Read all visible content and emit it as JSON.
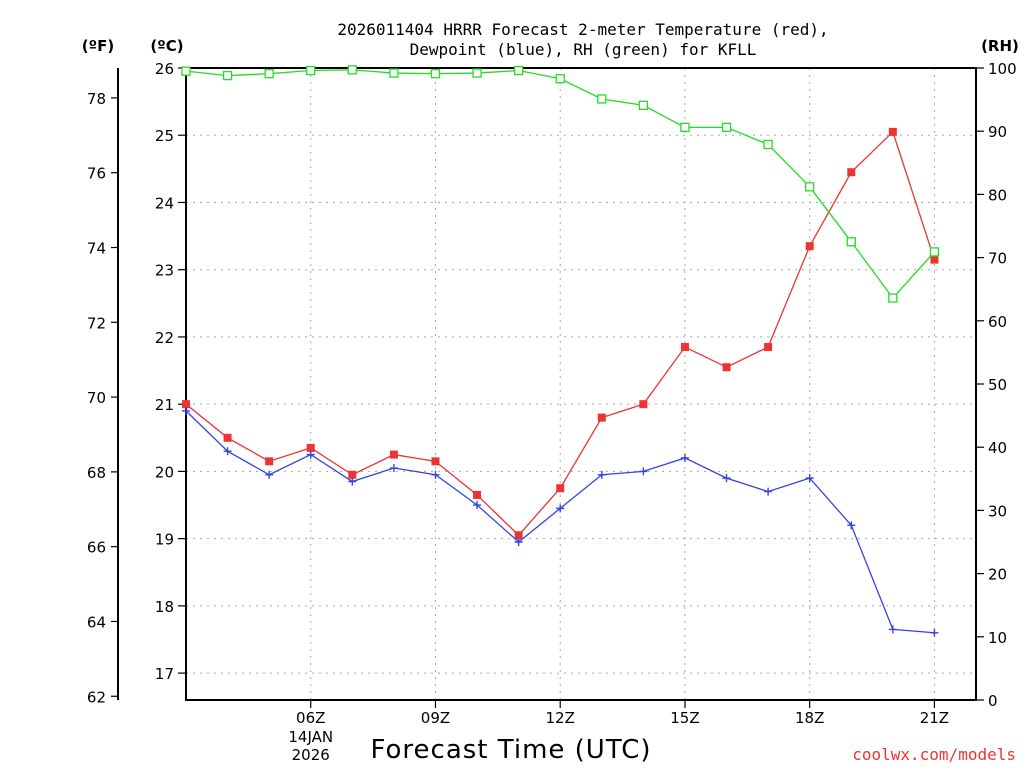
{
  "chart_data": {
    "type": "line",
    "title": [
      "2026011404 HRRR Forecast 2-meter Temperature (red),",
      "Dewpoint (blue), RH (green) for KFLL"
    ],
    "xlabel": "Forecast Time (UTC)",
    "credit": "coolwx.com/models",
    "x_hours": [
      3,
      4,
      5,
      6,
      7,
      8,
      9,
      10,
      11,
      12,
      13,
      14,
      15,
      16,
      17,
      18,
      19,
      20,
      21,
      22
    ],
    "xlim": [
      3,
      22
    ],
    "x_ticks": [
      {
        "hour": 6,
        "label": "06Z",
        "sub": [
          "14JAN",
          "2026"
        ]
      },
      {
        "hour": 9,
        "label": "09Z",
        "sub": []
      },
      {
        "hour": 12,
        "label": "12Z",
        "sub": []
      },
      {
        "hour": 15,
        "label": "15Z",
        "sub": []
      },
      {
        "hour": 18,
        "label": "18Z",
        "sub": []
      },
      {
        "hour": 21,
        "label": "21Z",
        "sub": []
      }
    ],
    "axes": {
      "celsius": {
        "unit_label": "(ºC)",
        "ylim": [
          16.6,
          26.0
        ],
        "ticks": [
          17,
          18,
          19,
          20,
          21,
          22,
          23,
          24,
          25,
          26
        ]
      },
      "fahrenheit": {
        "unit_label": "(ºF)",
        "ylim": [
          61.9,
          78.8
        ],
        "ticks": [
          62,
          64,
          66,
          68,
          70,
          72,
          74,
          76,
          78
        ]
      },
      "rh": {
        "unit_label": "(RH)",
        "ylim": [
          0,
          100
        ],
        "ticks": [
          0,
          10,
          20,
          30,
          40,
          50,
          60,
          70,
          80,
          90,
          100
        ]
      }
    },
    "grid": true,
    "series": [
      {
        "name": "Temperature",
        "axis": "celsius",
        "color": "#ee3333",
        "marker": "filled-square",
        "values": [
          21.0,
          20.5,
          20.15,
          20.35,
          19.95,
          20.25,
          20.15,
          19.65,
          19.05,
          19.75,
          20.8,
          21.0,
          21.85,
          21.55,
          21.85,
          23.35,
          24.45,
          25.05,
          23.15,
          null
        ]
      },
      {
        "name": "Dewpoint",
        "axis": "celsius",
        "color": "#3344dd",
        "marker": "plus",
        "values": [
          20.9,
          20.3,
          19.95,
          20.25,
          19.85,
          20.05,
          19.95,
          19.5,
          18.95,
          19.45,
          19.95,
          20.0,
          20.2,
          19.9,
          19.7,
          19.9,
          19.2,
          17.65,
          17.6,
          null
        ]
      },
      {
        "name": "RH",
        "axis": "rh",
        "color": "#22dd22",
        "marker": "open-square",
        "values": [
          99.5,
          98.8,
          99.1,
          99.6,
          99.7,
          99.2,
          99.1,
          99.2,
          99.6,
          98.3,
          95.1,
          94.1,
          90.6,
          90.6,
          87.9,
          81.2,
          72.5,
          63.6,
          70.9,
          null
        ]
      }
    ]
  }
}
